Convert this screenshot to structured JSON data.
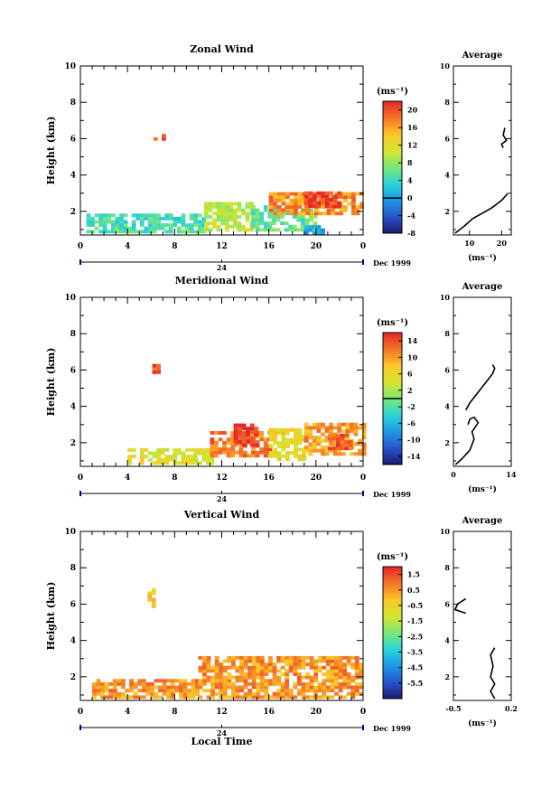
{
  "chart_data": [
    {
      "type": "heatmap",
      "id": "zonal",
      "title": "Zonal Wind",
      "ylabel": "Height (km)",
      "xlabel": "",
      "xlim": [
        0,
        24
      ],
      "ylim": [
        0.7,
        10
      ],
      "xticks": [
        "0",
        "4",
        "8",
        "12",
        "16",
        "20",
        "0"
      ],
      "yticks": [
        "2",
        "4",
        "6",
        "8",
        "10"
      ],
      "date_marker": "24",
      "date_label": "Dec 1999",
      "colorbar": {
        "unit": "(ms⁻¹)",
        "min": -8,
        "max": 22,
        "ticks": [
          "20",
          "16",
          "12",
          "8",
          "4",
          "0",
          "-4",
          "-8"
        ],
        "tick_values": [
          20,
          16,
          12,
          8,
          4,
          0,
          -4,
          -8
        ],
        "zero_line": 0
      },
      "data_regions": [
        {
          "x0": 0.5,
          "x1": 10.5,
          "y0": 0.8,
          "y1": 1.8,
          "v": 5
        },
        {
          "x0": 10.5,
          "x1": 14.5,
          "y0": 0.9,
          "y1": 2.4,
          "v": 10
        },
        {
          "x0": 14.5,
          "x1": 20,
          "y0": 0.9,
          "y1": 2.2,
          "v": 6
        },
        {
          "x0": 19,
          "x1": 20.5,
          "y0": 0.7,
          "y1": 1.2,
          "v": 1
        },
        {
          "x0": 16,
          "x1": 24,
          "y0": 1.8,
          "y1": 2.9,
          "v": 17
        },
        {
          "x0": 19,
          "x1": 22,
          "y0": 2.2,
          "y1": 3.0,
          "v": 21
        },
        {
          "x0": 6.2,
          "x1": 6.9,
          "y0": 5.9,
          "y1": 6.1,
          "v": 21
        }
      ],
      "average": {
        "title": "Average",
        "xlim": [
          5,
          23
        ],
        "xticks": [
          "10",
          "20"
        ],
        "xtick_values": [
          10,
          20
        ],
        "xlabel": "(ms⁻¹)",
        "profile": [
          [
            5.5,
            0.8
          ],
          [
            7,
            1.0
          ],
          [
            8.5,
            1.2
          ],
          [
            11,
            1.6
          ],
          [
            14,
            1.9
          ],
          [
            17,
            2.2
          ],
          [
            20,
            2.6
          ],
          [
            22,
            3.0
          ]
        ],
        "profile_upper": [
          [
            20.5,
            5.5
          ],
          [
            20,
            5.7
          ],
          [
            21.5,
            5.9
          ],
          [
            20.5,
            6.2
          ],
          [
            21,
            6.6
          ]
        ]
      }
    },
    {
      "type": "heatmap",
      "id": "meridional",
      "title": "Meridional Wind",
      "ylabel": "Height (km)",
      "xlabel": "",
      "xlim": [
        0,
        24
      ],
      "ylim": [
        0.7,
        10
      ],
      "xticks": [
        "0",
        "4",
        "8",
        "12",
        "16",
        "20",
        "0"
      ],
      "yticks": [
        "2",
        "4",
        "6",
        "8",
        "10"
      ],
      "date_marker": "24",
      "date_label": "Dec 1999",
      "colorbar": {
        "unit": "(ms⁻¹)",
        "min": -16,
        "max": 16,
        "ticks": [
          "14",
          "10",
          "6",
          "2",
          "-2",
          "-6",
          "-10",
          "-14"
        ],
        "tick_values": [
          14,
          10,
          6,
          2,
          -2,
          -6,
          -10,
          -14
        ],
        "zero_line": 0
      },
      "data_regions": [
        {
          "x0": 4,
          "x1": 11,
          "y0": 0.8,
          "y1": 1.6,
          "v": 5
        },
        {
          "x0": 11,
          "x1": 16,
          "y0": 1.2,
          "y1": 2.6,
          "v": 12
        },
        {
          "x0": 13,
          "x1": 15,
          "y0": 1.8,
          "y1": 2.9,
          "v": 15
        },
        {
          "x0": 16,
          "x1": 19,
          "y0": 1.0,
          "y1": 2.7,
          "v": 6
        },
        {
          "x0": 19,
          "x1": 24,
          "y0": 1.3,
          "y1": 3.0,
          "v": 10
        },
        {
          "x0": 21,
          "x1": 23,
          "y0": 1.6,
          "y1": 2.4,
          "v": 13
        },
        {
          "x0": 6.1,
          "x1": 6.6,
          "y0": 5.8,
          "y1": 6.3,
          "v": 14
        }
      ],
      "average": {
        "title": "Average",
        "xlim": [
          0,
          14
        ],
        "xticks": [
          "0",
          "14"
        ],
        "xtick_values": [
          0,
          14
        ],
        "xlabel": "(ms⁻¹)",
        "profile": [
          [
            0.5,
            0.8
          ],
          [
            2,
            1.1
          ],
          [
            4,
            1.6
          ],
          [
            5,
            2.2
          ],
          [
            4.5,
            2.6
          ],
          [
            6,
            3.1
          ],
          [
            5,
            3.4
          ],
          [
            4,
            3.3
          ],
          [
            3.5,
            3.0
          ]
        ],
        "profile_upper": [
          [
            3,
            3.8
          ],
          [
            4,
            4.2
          ],
          [
            9.5,
            5.8
          ],
          [
            10,
            6.1
          ],
          [
            9.5,
            6.3
          ]
        ]
      }
    },
    {
      "type": "heatmap",
      "id": "vertical",
      "title": "Vertical Wind",
      "ylabel": "Height (km)",
      "xlabel": "Local Time",
      "xlim": [
        0,
        24
      ],
      "ylim": [
        0.7,
        10
      ],
      "xticks": [
        "0",
        "4",
        "8",
        "12",
        "16",
        "20",
        "0"
      ],
      "yticks": [
        "2",
        "4",
        "6",
        "8",
        "10"
      ],
      "date_marker": "24",
      "date_label": "Dec 1999",
      "colorbar": {
        "unit": "(ms⁻¹)",
        "min": -6.5,
        "max": 2.0,
        "ticks": [
          "1.5",
          "0.5",
          "-0.5",
          "-1.5",
          "-2.5",
          "-3.5",
          "-4.5",
          "-5.5"
        ],
        "tick_values": [
          1.5,
          0.5,
          -0.5,
          -1.5,
          -2.5,
          -3.5,
          -4.5,
          -5.5
        ],
        "zero_line": null
      },
      "data_regions": [
        {
          "x0": 1,
          "x1": 10,
          "y0": 0.8,
          "y1": 1.7,
          "v": 0.5
        },
        {
          "x0": 10,
          "x1": 24,
          "y0": 0.8,
          "y1": 3.0,
          "v": 0.5
        },
        {
          "x0": 5.7,
          "x1": 6.2,
          "y0": 5.8,
          "y1": 6.8,
          "v": -0.4
        }
      ],
      "average": {
        "title": "Average",
        "xlim": [
          -0.5,
          0.2
        ],
        "xticks": [
          "-0.5",
          "0.2"
        ],
        "xtick_values": [
          -0.5,
          0.2
        ],
        "xlabel": "(ms⁻¹)",
        "profile": [
          [
            0.0,
            0.8
          ],
          [
            -0.05,
            1.2
          ],
          [
            0.0,
            1.6
          ],
          [
            -0.05,
            2.0
          ],
          [
            -0.02,
            2.6
          ],
          [
            -0.05,
            3.2
          ],
          [
            0.0,
            3.6
          ]
        ],
        "profile_upper": [
          [
            -0.35,
            5.5
          ],
          [
            -0.48,
            5.7
          ],
          [
            -0.45,
            6.0
          ],
          [
            -0.35,
            6.3
          ]
        ]
      }
    }
  ]
}
